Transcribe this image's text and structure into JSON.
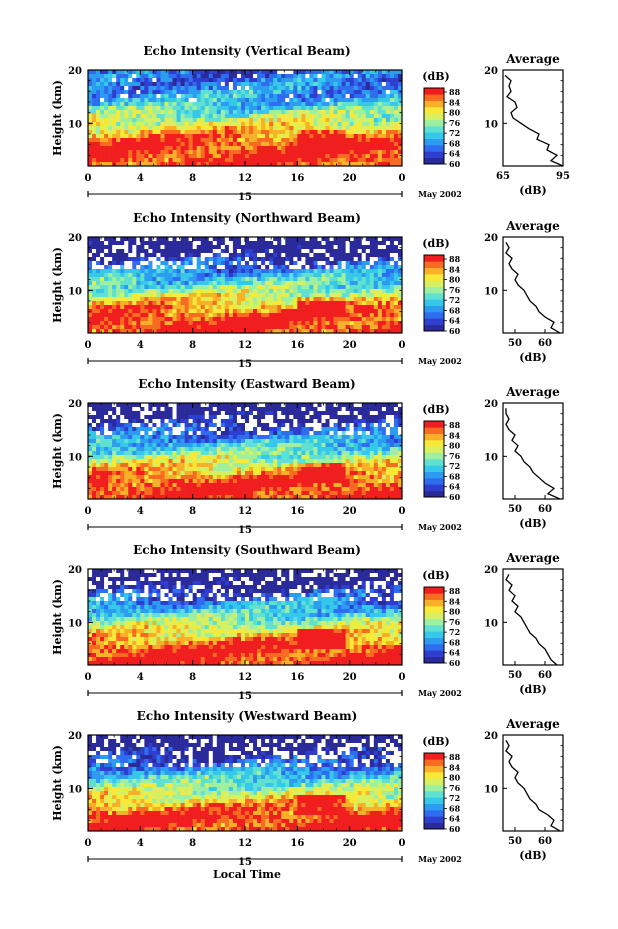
{
  "chart_data": [
    {
      "type": "heatmap",
      "title": "Echo Intensity (Vertical Beam)",
      "ylabel": "Height (km)",
      "x_ticks": [
        "0",
        "4",
        "8",
        "12",
        "16",
        "20",
        "0"
      ],
      "y_ticks": [
        "20",
        "10"
      ],
      "day_label": "15",
      "date_label": "May 2002",
      "colorbar": {
        "unit": "(dB)",
        "ticks": [
          "88",
          "84",
          "80",
          "76",
          "72",
          "68",
          "64",
          "60"
        ]
      },
      "profile": {
        "title": "Average",
        "xlabel": "(dB)",
        "x_ticks": [
          "65",
          "95"
        ],
        "xlim": [
          65,
          95
        ],
        "y_ticks": [
          "20",
          "10"
        ],
        "height_km": [
          2,
          3,
          4,
          5,
          6,
          7,
          8,
          9,
          10,
          11,
          12,
          13,
          14,
          15,
          16,
          17,
          18,
          19
        ],
        "db": [
          95,
          89,
          92,
          87,
          88,
          82,
          83,
          78,
          74,
          70,
          69,
          72,
          71,
          67,
          69,
          68,
          69,
          66
        ]
      }
    },
    {
      "type": "heatmap",
      "title": "Echo Intensity (Northward Beam)",
      "ylabel": "Height (km)",
      "x_ticks": [
        "0",
        "4",
        "8",
        "12",
        "16",
        "20",
        "0"
      ],
      "y_ticks": [
        "20",
        "10"
      ],
      "day_label": "15",
      "date_label": "May 2002",
      "colorbar": {
        "unit": "(dB)",
        "ticks": [
          "88",
          "84",
          "80",
          "76",
          "72",
          "68",
          "64",
          "60"
        ]
      },
      "profile": {
        "title": "Average",
        "xlabel": "(dB)",
        "x_ticks": [
          "50",
          "60"
        ],
        "xlim": [
          46,
          66
        ],
        "y_ticks": [
          "20",
          "10"
        ],
        "height_km": [
          2,
          3,
          4,
          5,
          6,
          7,
          8,
          9,
          10,
          11,
          12,
          13,
          14,
          15,
          16,
          17,
          18,
          19
        ],
        "db": [
          65,
          62,
          63,
          60,
          58,
          57,
          55,
          54,
          53,
          51,
          50,
          51,
          49,
          48,
          49,
          47,
          48,
          47
        ]
      }
    },
    {
      "type": "heatmap",
      "title": "Echo Intensity (Eastward Beam)",
      "ylabel": "Height (km)",
      "x_ticks": [
        "0",
        "4",
        "8",
        "12",
        "16",
        "20",
        "0"
      ],
      "y_ticks": [
        "20",
        "10"
      ],
      "day_label": "15",
      "date_label": "May 2002",
      "colorbar": {
        "unit": "(dB)",
        "ticks": [
          "88",
          "84",
          "80",
          "76",
          "72",
          "68",
          "64",
          "60"
        ]
      },
      "profile": {
        "title": "Average",
        "xlabel": "(dB)",
        "x_ticks": [
          "50",
          "60"
        ],
        "xlim": [
          46,
          66
        ],
        "y_ticks": [
          "20",
          "10"
        ],
        "height_km": [
          2,
          3,
          4,
          5,
          6,
          7,
          8,
          9,
          10,
          11,
          12,
          13,
          14,
          15,
          16,
          17,
          18,
          19
        ],
        "db": [
          65,
          61,
          63,
          60,
          58,
          56,
          55,
          53,
          52,
          50,
          51,
          49,
          50,
          48,
          47,
          48,
          47,
          47
        ]
      }
    },
    {
      "type": "heatmap",
      "title": "Echo Intensity (Southward Beam)",
      "ylabel": "Height (km)",
      "x_ticks": [
        "0",
        "4",
        "8",
        "12",
        "16",
        "20",
        "0"
      ],
      "y_ticks": [
        "20",
        "10"
      ],
      "day_label": "15",
      "date_label": "May 2002",
      "colorbar": {
        "unit": "(dB)",
        "ticks": [
          "88",
          "84",
          "80",
          "76",
          "72",
          "68",
          "64",
          "60"
        ]
      },
      "profile": {
        "title": "Average",
        "xlabel": "(dB)",
        "x_ticks": [
          "50",
          "60"
        ],
        "xlim": [
          46,
          66
        ],
        "y_ticks": [
          "20",
          "10"
        ],
        "height_km": [
          2,
          3,
          4,
          5,
          6,
          7,
          8,
          9,
          10,
          11,
          12,
          13,
          14,
          15,
          16,
          17,
          18,
          19
        ],
        "db": [
          64,
          62,
          61,
          60,
          58,
          57,
          55,
          54,
          53,
          52,
          50,
          51,
          49,
          50,
          48,
          49,
          47,
          48
        ]
      }
    },
    {
      "type": "heatmap",
      "title": "Echo Intensity (Westward Beam)",
      "ylabel": "Height (km)",
      "xlabel": "Local Time",
      "x_ticks": [
        "0",
        "4",
        "8",
        "12",
        "16",
        "20",
        "0"
      ],
      "y_ticks": [
        "20",
        "10"
      ],
      "day_label": "15",
      "date_label": "May 2002",
      "colorbar": {
        "unit": "(dB)",
        "ticks": [
          "88",
          "84",
          "80",
          "76",
          "72",
          "68",
          "64",
          "60"
        ]
      },
      "profile": {
        "title": "Average",
        "xlabel": "(dB)",
        "x_ticks": [
          "50",
          "60"
        ],
        "xlim": [
          46,
          66
        ],
        "y_ticks": [
          "20",
          "10"
        ],
        "height_km": [
          2,
          3,
          4,
          5,
          6,
          7,
          8,
          9,
          10,
          11,
          12,
          13,
          14,
          15,
          16,
          17,
          18,
          19
        ],
        "db": [
          65,
          62,
          63,
          61,
          58,
          57,
          55,
          54,
          53,
          51,
          50,
          51,
          49,
          48,
          49,
          47,
          48,
          47
        ]
      }
    }
  ],
  "colors": [
    "#2a2a9a",
    "#2e3fd0",
    "#2f6df0",
    "#2c9cf0",
    "#36c8ea",
    "#5fe0d0",
    "#9ef0a0",
    "#d8f060",
    "#f8e838",
    "#f8b028",
    "#f86c22",
    "#f01e1e"
  ]
}
